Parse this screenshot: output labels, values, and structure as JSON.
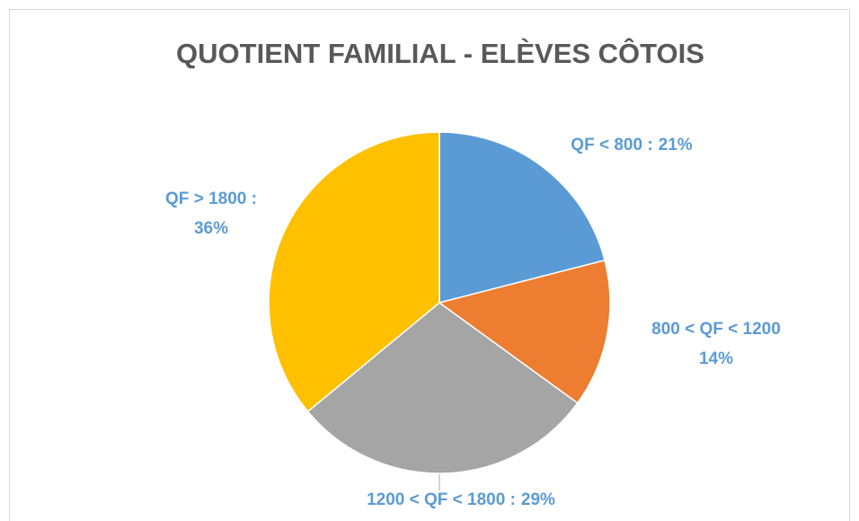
{
  "chart_data": {
    "type": "pie",
    "title": "QUOTIENT FAMILIAL - ELÈVES CÔTOIS",
    "categories": [
      "QF < 800 :",
      "800 < QF < 1200",
      "1200 < QF < 1800 :",
      "QF > 1800 :"
    ],
    "values": [
      21,
      14,
      29,
      36
    ],
    "value_labels": [
      "21%",
      "14%",
      "29%",
      "36%"
    ],
    "colors": [
      "#5b9bd5",
      "#ed7d31",
      "#a5a5a5",
      "#ffc000"
    ]
  }
}
